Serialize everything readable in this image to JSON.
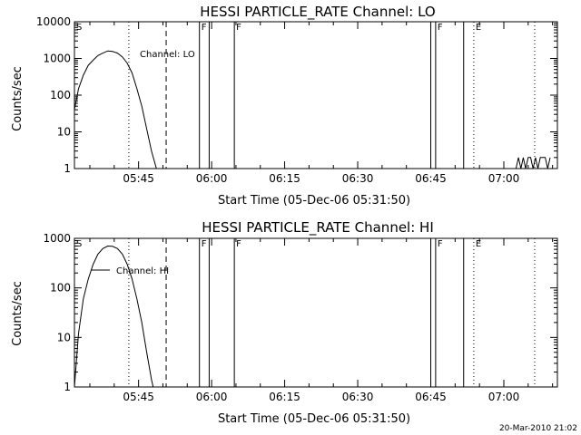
{
  "footer_text": "20-Mar-2010 21:02",
  "chart_data": [
    {
      "type": "line",
      "title": "HESSI PARTICLE_RATE Channel: LO",
      "xlabel": "Start Time (05-Dec-06 05:31:50)",
      "ylabel": "Counts/sec",
      "x_tick_labels": [
        "05:45",
        "06:00",
        "06:15",
        "06:30",
        "06:45",
        "07:00"
      ],
      "y_tick_labels": [
        "1",
        "10",
        "100",
        "1000",
        "10000"
      ],
      "y_scale": "log",
      "xlim": [
        "05:31:50",
        "07:11:00"
      ],
      "ylim": [
        1,
        10000
      ],
      "grid": false,
      "legend": "Channel: LO",
      "series": [
        {
          "name": "Channel: LO",
          "x": [
            "05:31:50",
            "05:32:40",
            "05:33:40",
            "05:34:40",
            "05:35:40",
            "05:36:40",
            "05:37:40",
            "05:38:40",
            "05:39:40",
            "05:40:40",
            "05:41:40",
            "05:42:40",
            "05:43:40",
            "05:44:40",
            "05:45:40",
            "05:46:40",
            "05:47:40",
            "05:48:40"
          ],
          "values": [
            40,
            150,
            350,
            650,
            900,
            1200,
            1400,
            1600,
            1550,
            1400,
            1100,
            750,
            400,
            150,
            50,
            12,
            3,
            1
          ]
        },
        {
          "name": "",
          "x": [
            "07:02:30",
            "07:03:00",
            "07:03:30",
            "07:04:00",
            "07:04:30",
            "07:05:00",
            "07:05:30",
            "07:06:00",
            "07:06:30",
            "07:07:00",
            "07:07:30",
            "07:08:00",
            "07:08:30",
            "07:09:00",
            "07:09:30"
          ],
          "values": [
            1,
            2,
            1,
            2,
            1,
            2,
            2,
            1,
            2,
            1,
            2,
            2,
            2,
            1,
            2
          ]
        }
      ],
      "markers": [
        {
          "label": "S",
          "time": "05:31:50",
          "style": "none"
        },
        {
          "label": "",
          "time": "05:43:00",
          "style": "dotted"
        },
        {
          "label": "",
          "time": "05:50:40",
          "style": "dashed"
        },
        {
          "label": "F",
          "time": "05:57:30",
          "style": "solid"
        },
        {
          "label": "",
          "time": "05:59:30",
          "style": "solid"
        },
        {
          "label": "F",
          "time": "06:04:40",
          "style": "solid"
        },
        {
          "label": "",
          "time": "06:45:00",
          "style": "solid"
        },
        {
          "label": "F",
          "time": "06:46:00",
          "style": "solid"
        },
        {
          "label": "",
          "time": "06:51:45",
          "style": "solid"
        },
        {
          "label": "E",
          "time": "06:53:50",
          "style": "dotted"
        },
        {
          "label": "",
          "time": "07:06:20",
          "style": "dotted"
        }
      ]
    },
    {
      "type": "line",
      "title": "HESSI PARTICLE_RATE Channel: HI",
      "xlabel": "Start Time (05-Dec-06 05:31:50)",
      "ylabel": "Counts/sec",
      "x_tick_labels": [
        "05:45",
        "06:00",
        "06:15",
        "06:30",
        "06:45",
        "07:00"
      ],
      "y_tick_labels": [
        "1",
        "10",
        "100",
        "1000"
      ],
      "y_scale": "log",
      "xlim": [
        "05:31:50",
        "07:11:00"
      ],
      "ylim": [
        1,
        1000
      ],
      "grid": false,
      "legend": "Channel: HI",
      "series": [
        {
          "name": "Channel: HI",
          "x": [
            "05:31:50",
            "05:32:40",
            "05:33:40",
            "05:34:40",
            "05:35:40",
            "05:36:40",
            "05:37:40",
            "05:38:40",
            "05:39:40",
            "05:40:40",
            "05:41:40",
            "05:42:40",
            "05:43:40",
            "05:44:40",
            "05:45:40",
            "05:46:40",
            "05:47:40",
            "05:48:00"
          ],
          "values": [
            1,
            12,
            60,
            150,
            300,
            480,
            620,
            700,
            690,
            620,
            480,
            300,
            150,
            60,
            20,
            5,
            1.4,
            1
          ]
        }
      ],
      "markers": [
        {
          "label": "S",
          "time": "05:31:50",
          "style": "none"
        },
        {
          "label": "",
          "time": "05:43:00",
          "style": "dotted"
        },
        {
          "label": "",
          "time": "05:50:40",
          "style": "dashed"
        },
        {
          "label": "F",
          "time": "05:57:30",
          "style": "solid"
        },
        {
          "label": "",
          "time": "05:59:30",
          "style": "solid"
        },
        {
          "label": "F",
          "time": "06:04:40",
          "style": "solid"
        },
        {
          "label": "",
          "time": "06:45:00",
          "style": "solid"
        },
        {
          "label": "F",
          "time": "06:46:00",
          "style": "solid"
        },
        {
          "label": "",
          "time": "06:51:45",
          "style": "solid"
        },
        {
          "label": "E",
          "time": "06:53:50",
          "style": "dotted"
        },
        {
          "label": "",
          "time": "07:06:20",
          "style": "dotted"
        }
      ]
    }
  ]
}
